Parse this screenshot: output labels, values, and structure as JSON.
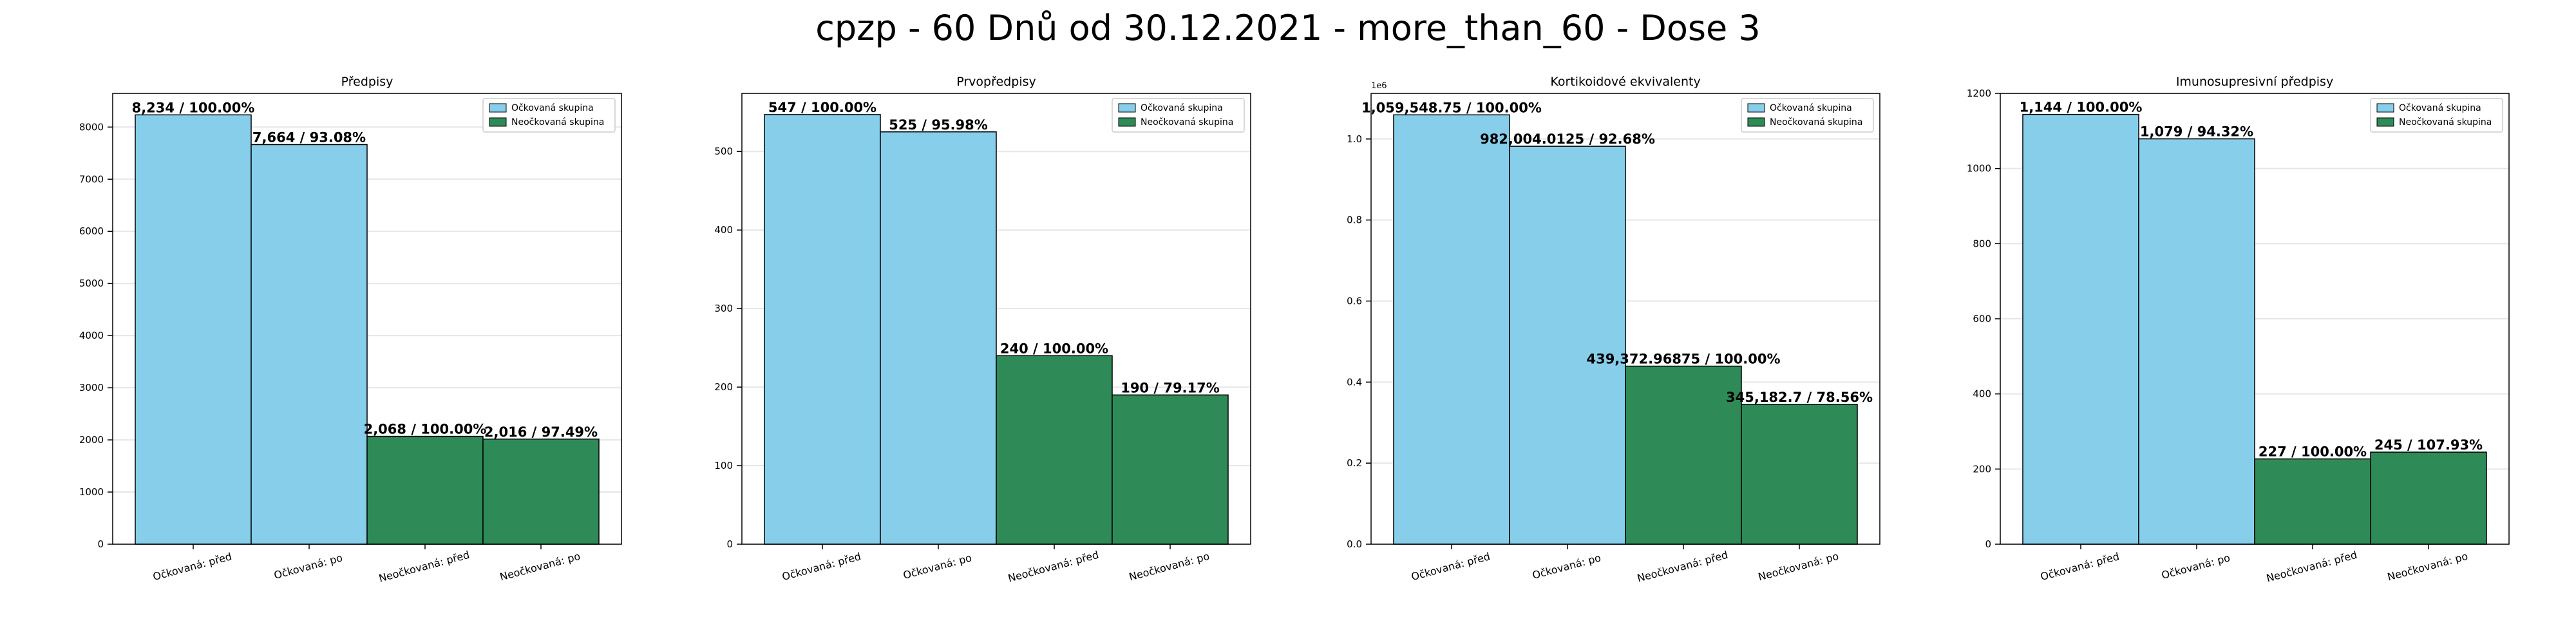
{
  "suptitle": "cpzp - 60 Dnů od 30.12.2021 - more_than_60 - Dose 3",
  "colors": {
    "vaccinated": "#87CEEB",
    "unvaccinated": "#2E8B57",
    "edge": "#000000",
    "grid": "#e6e6e6"
  },
  "legend_labels": [
    "Očkovaná skupina",
    "Neočkovaná skupina"
  ],
  "chart_data": [
    {
      "type": "bar",
      "title": "Předpisy",
      "categories": [
        "Očkovaná: před",
        "Očkovaná: po",
        "Neočkovaná: před",
        "Neočkovaná: po"
      ],
      "values": [
        8234,
        7664,
        2068,
        2016
      ],
      "bar_labels": [
        "8,234 / 100.00%",
        "7,664 / 93.08%",
        "2,068 / 100.00%",
        "2,016 / 97.49%"
      ],
      "groups": [
        "vaccinated",
        "vaccinated",
        "unvaccinated",
        "unvaccinated"
      ],
      "ylim": [
        0,
        8646
      ],
      "yticks": [
        0,
        1000,
        2000,
        3000,
        4000,
        5000,
        6000,
        7000,
        8000
      ],
      "ytick_labels": [
        "0",
        "1000",
        "2000",
        "3000",
        "4000",
        "5000",
        "6000",
        "7000",
        "8000"
      ],
      "offset_label": "",
      "grid": true,
      "legend": "top-right"
    },
    {
      "type": "bar",
      "title": "Prvopředpisy",
      "categories": [
        "Očkovaná: před",
        "Očkovaná: po",
        "Neočkovaná: před",
        "Neočkovaná: po"
      ],
      "values": [
        547,
        525,
        240,
        190
      ],
      "bar_labels": [
        "547 / 100.00%",
        "525 / 95.98%",
        "240 / 100.00%",
        "190 / 79.17%"
      ],
      "groups": [
        "vaccinated",
        "vaccinated",
        "unvaccinated",
        "unvaccinated"
      ],
      "ylim": [
        0,
        574
      ],
      "yticks": [
        0,
        100,
        200,
        300,
        400,
        500
      ],
      "ytick_labels": [
        "0",
        "100",
        "200",
        "300",
        "400",
        "500"
      ],
      "offset_label": "",
      "grid": true,
      "legend": "top-right"
    },
    {
      "type": "bar",
      "title": "Kortikoidové ekvivalenty",
      "categories": [
        "Očkovaná: před",
        "Očkovaná: po",
        "Neočkovaná: před",
        "Neočkovaná: po"
      ],
      "values": [
        1059548.75,
        982004.0125,
        439372.96875,
        345182.7
      ],
      "bar_labels": [
        "1,059,548.75 / 100.00%",
        "982,004.0125 / 92.68%",
        "439,372.96875 / 100.00%",
        "345,182.7 / 78.56%"
      ],
      "groups": [
        "vaccinated",
        "vaccinated",
        "unvaccinated",
        "unvaccinated"
      ],
      "ylim": [
        0,
        1112526
      ],
      "yticks": [
        0,
        200000,
        400000,
        600000,
        800000,
        1000000
      ],
      "ytick_labels": [
        "0.0",
        "0.2",
        "0.4",
        "0.6",
        "0.8",
        "1.0"
      ],
      "offset_label": "1e6",
      "grid": true,
      "legend": "top-right"
    },
    {
      "type": "bar",
      "title": "Imunosupresivní předpisy",
      "categories": [
        "Očkovaná: před",
        "Očkovaná: po",
        "Neočkovaná: před",
        "Neočkovaná: po"
      ],
      "values": [
        1144,
        1079,
        227,
        245
      ],
      "bar_labels": [
        "1,144 / 100.00%",
        "1,079 / 94.32%",
        "227 / 100.00%",
        "245 / 107.93%"
      ],
      "groups": [
        "vaccinated",
        "vaccinated",
        "unvaccinated",
        "unvaccinated"
      ],
      "ylim": [
        0,
        1200
      ],
      "yticks": [
        0,
        200,
        400,
        600,
        800,
        1000,
        1200
      ],
      "ytick_labels": [
        "0",
        "200",
        "400",
        "600",
        "800",
        "1000",
        "1200"
      ],
      "offset_label": "",
      "grid": true,
      "legend": "top-right"
    }
  ]
}
